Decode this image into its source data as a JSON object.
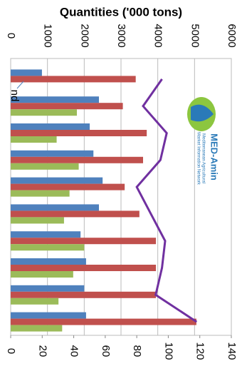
{
  "chart_data": {
    "type": "bar",
    "title": "Quantities ('000 tons)",
    "categories": [
      null,
      null,
      null,
      null,
      null,
      null,
      null,
      null,
      null,
      null
    ],
    "series": [
      {
        "color": "#4f81bd",
        "values": [
          850,
          2400,
          2150,
          2250,
          2500,
          2400,
          1900,
          2050,
          2000,
          2050
        ]
      },
      {
        "color": "#c0504d",
        "values": [
          3400,
          3050,
          3700,
          3600,
          3100,
          3500,
          3950,
          3950,
          3950,
          5050
        ]
      },
      {
        "color": "#9bbb59",
        "values": [
          null,
          1800,
          1250,
          1850,
          1600,
          1450,
          2000,
          1700,
          1300,
          1400
        ]
      },
      {
        "type": "line",
        "axis": "y2",
        "color": "#7030a0",
        "values": [
          96,
          84,
          99,
          95,
          80,
          89,
          98,
          96,
          92,
          118
        ]
      }
    ],
    "ylim": [
      0,
      6000
    ],
    "yticks": [
      0,
      1000,
      2000,
      3000,
      4000,
      5000,
      6000
    ],
    "y2lim": [
      0,
      140
    ],
    "y2ticks": [
      0,
      20,
      40,
      60,
      80,
      100,
      120,
      140
    ],
    "grid": true,
    "annotation": "nd",
    "logo": {
      "name": "MED-Amin",
      "line1": "Mediterranean Agricultural",
      "line2": "Market Information Network"
    }
  }
}
